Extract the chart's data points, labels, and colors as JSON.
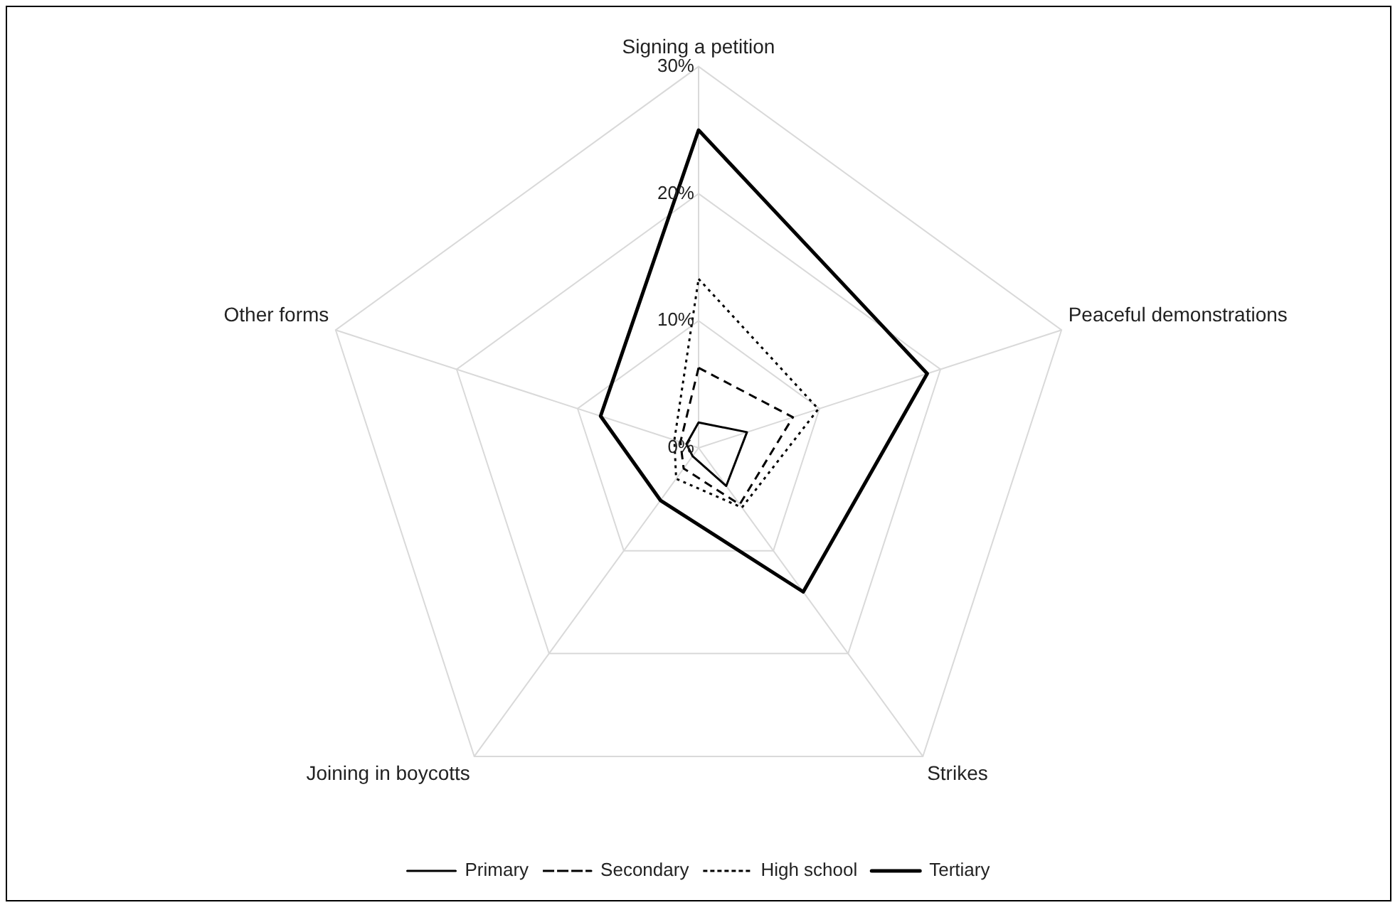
{
  "chart_data": {
    "type": "radar",
    "categories": [
      "Signing a petition",
      "Peaceful demonstrations",
      "Strikes",
      "Joining in boycotts",
      "Other forms"
    ],
    "series": [
      {
        "name": "Primary",
        "color": "#000000",
        "line_style": "solid",
        "values": [
          2,
          4,
          3.7,
          0.8,
          1
        ]
      },
      {
        "name": "Secondary",
        "color": "#000000",
        "line_style": "dashed",
        "values": [
          6.3,
          7.8,
          5.5,
          2,
          1.5
        ]
      },
      {
        "name": "High school",
        "color": "#000000",
        "line_style": "dotted",
        "values": [
          13.3,
          9.9,
          5.8,
          3,
          2
        ]
      },
      {
        "name": "Tertiary",
        "color": "#000000",
        "line_style": "solid",
        "values": [
          25,
          18.9,
          14,
          5.1,
          8.1
        ]
      }
    ],
    "ylim": [
      0,
      30
    ],
    "yticks": [
      {
        "value": 0,
        "label": "0%"
      },
      {
        "value": 10,
        "label": "10%"
      },
      {
        "value": 20,
        "label": "20%"
      },
      {
        "value": 30,
        "label": "30%"
      }
    ],
    "grid": true,
    "legend": "bottom",
    "marker": "none"
  }
}
